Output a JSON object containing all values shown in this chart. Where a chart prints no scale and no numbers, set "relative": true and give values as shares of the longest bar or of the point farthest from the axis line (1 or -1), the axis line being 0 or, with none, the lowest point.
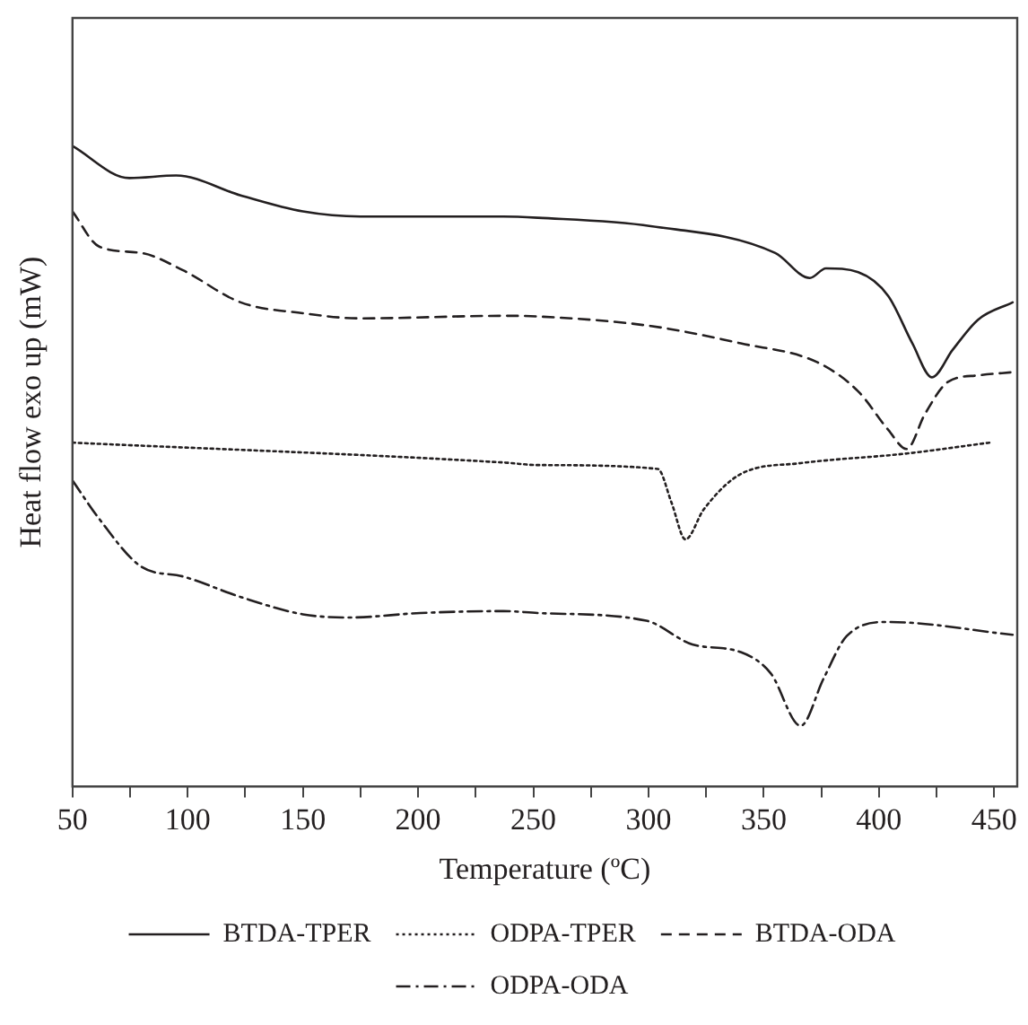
{
  "chart_data": {
    "type": "line",
    "relative": true,
    "xlabel": "Temperature (ºC)",
    "ylabel": "Heat flow exo up (mW)",
    "xlim": [
      50,
      460
    ],
    "xticks": [
      50,
      {
        "value": 75,
        "label": null
      },
      100,
      {
        "value": 125,
        "label": null
      },
      150,
      {
        "value": 175,
        "label": null
      },
      200,
      {
        "value": 225,
        "label": null
      },
      250,
      {
        "value": 275,
        "label": null
      },
      300,
      {
        "value": 325,
        "label": null
      },
      350,
      {
        "value": 375,
        "label": null
      },
      400,
      {
        "value": 425,
        "label": null
      },
      450
    ],
    "grid": false,
    "legend": "bottom",
    "marker": "none",
    "series": [
      {
        "name": "BTDA-TPER",
        "color": "#231f20",
        "line_style": "solid",
        "x": [
          50,
          74.7,
          95,
          123,
          150,
          175,
          237,
          252,
          301,
          355,
          370,
          377,
          391,
          404,
          414.5,
          423,
          432,
          443,
          458
        ],
        "values": [
          1.0,
          0.95,
          0.954,
          0.923,
          0.898,
          0.89,
          0.89,
          0.888,
          0.875,
          0.833,
          0.794,
          0.809,
          0.803,
          0.766,
          0.692,
          0.639,
          0.682,
          0.729,
          0.756
        ]
      },
      {
        "name": "BTDA-ODA",
        "color": "#231f20",
        "line_style": "dashed",
        "x": [
          50,
          61.6,
          80,
          98,
          123,
          150,
          175,
          237,
          252,
          301,
          340,
          373.5,
          391,
          404,
          412,
          420,
          430,
          443,
          458
        ],
        "values": [
          0.898,
          0.843,
          0.833,
          0.806,
          0.756,
          0.739,
          0.731,
          0.735,
          0.734,
          0.719,
          0.692,
          0.662,
          0.617,
          0.557,
          0.527,
          0.582,
          0.632,
          0.642,
          0.647
        ]
      },
      {
        "name": "ODPA-TPER",
        "color": "#231f20",
        "line_style": "dotted",
        "x": [
          50,
          237,
          252,
          304,
          310,
          316,
          324,
          340,
          366,
          412,
          448
        ],
        "values": [
          0.537,
          0.506,
          0.502,
          0.496,
          0.443,
          0.386,
          0.433,
          0.488,
          0.505,
          0.52,
          0.537
        ]
      },
      {
        "name": "ODPA-ODA",
        "color": "#231f20",
        "line_style": "dashdot",
        "x": [
          50,
          61.6,
          80,
          98,
          123,
          150,
          170,
          201,
          237,
          252,
          299,
          319,
          340,
          353,
          366,
          376,
          386,
          404,
          458
        ],
        "values": [
          0.478,
          0.418,
          0.343,
          0.328,
          0.296,
          0.269,
          0.264,
          0.271,
          0.274,
          0.271,
          0.259,
          0.222,
          0.21,
          0.177,
          0.095,
          0.169,
          0.235,
          0.257,
          0.237
        ]
      }
    ]
  }
}
